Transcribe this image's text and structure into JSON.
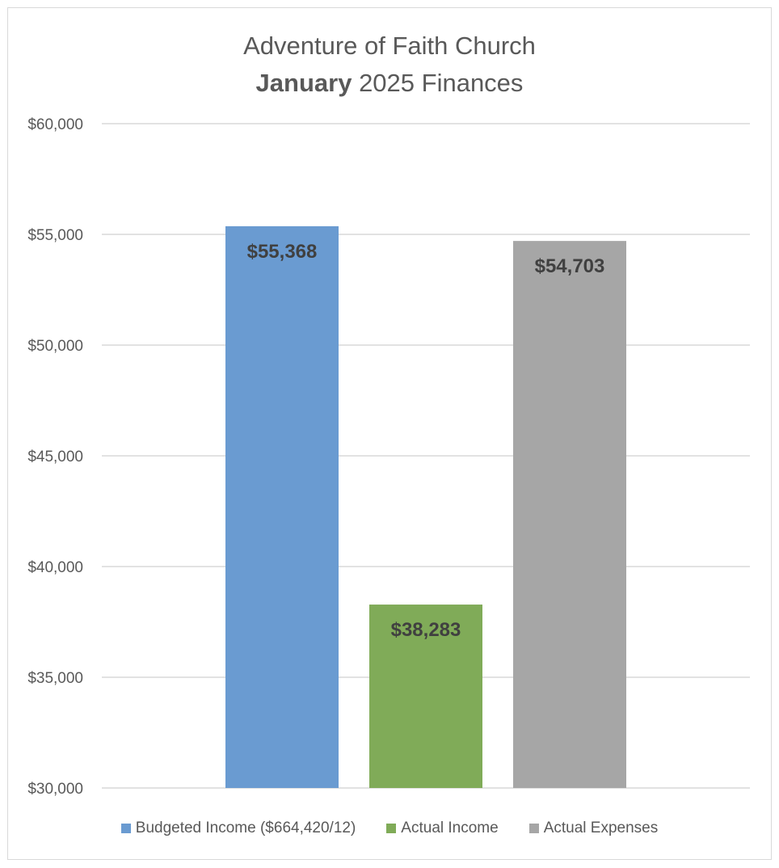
{
  "chart_data": {
    "type": "bar",
    "title_line1": "Adventure of Faith Church",
    "title_line2_bold": "January",
    "title_line2_rest": " 2025 Finances",
    "categories": [
      "Budgeted Income ($664,420/12)",
      "Actual Income",
      "Actual Expenses"
    ],
    "values": [
      55368,
      38283,
      54703
    ],
    "data_labels": [
      "$55,368",
      "$38,283",
      "$54,703"
    ],
    "colors": [
      "#6a9bd1",
      "#80ab58",
      "#a6a6a6"
    ],
    "ylim": [
      30000,
      60000
    ],
    "y_ticks": [
      30000,
      35000,
      40000,
      45000,
      50000,
      55000,
      60000
    ],
    "y_tick_labels": [
      "$30,000",
      "$35,000",
      "$40,000",
      "$45,000",
      "$50,000",
      "$55,000",
      "$60,000"
    ],
    "grid": true,
    "gridline_color": "#d9d9d9",
    "legend_position": "bottom"
  }
}
